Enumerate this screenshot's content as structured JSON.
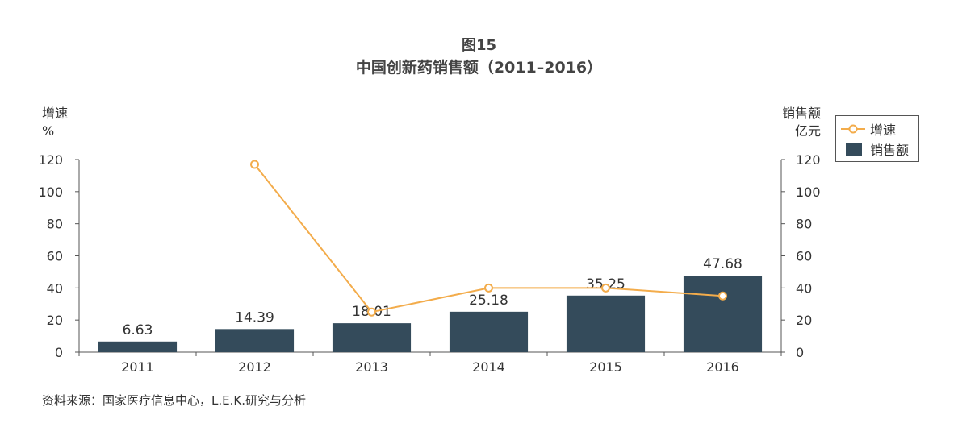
{
  "figure": {
    "label": "图15",
    "title": "中国创新药销售额（2011–2016）",
    "source": "资料来源：国家医疗信息中心，L.E.K.研究与分析"
  },
  "colors": {
    "bar": "#344b5b",
    "line": "#f3ac4b",
    "axis": "#555555"
  },
  "chart_data": {
    "type": "bar",
    "categories": [
      "2011",
      "2012",
      "2013",
      "2014",
      "2015",
      "2016"
    ],
    "series": [
      {
        "name": "销售额",
        "type": "bar",
        "axis": "right",
        "values": [
          6.63,
          14.39,
          18.01,
          25.18,
          35.25,
          47.68
        ],
        "value_labels": [
          "6.63",
          "14.39",
          "18.01",
          "25.18",
          "35.25",
          "47.68"
        ]
      },
      {
        "name": "增速",
        "type": "line",
        "axis": "left",
        "values": [
          null,
          117,
          25,
          40,
          40,
          35
        ]
      }
    ],
    "y_left": {
      "label_line1": "增速",
      "label_line2": "%",
      "range": [
        0,
        120
      ],
      "ticks": [
        "0",
        "20",
        "40",
        "60",
        "80",
        "100",
        "120"
      ]
    },
    "y_right": {
      "label_line1": "销售额",
      "label_line2": "亿元",
      "range": [
        0,
        120
      ],
      "ticks": [
        "0",
        "20",
        "40",
        "60",
        "80",
        "100",
        "120"
      ]
    },
    "legend": {
      "position": "top-right",
      "items": [
        "增速",
        "销售额"
      ]
    },
    "grid": false
  }
}
